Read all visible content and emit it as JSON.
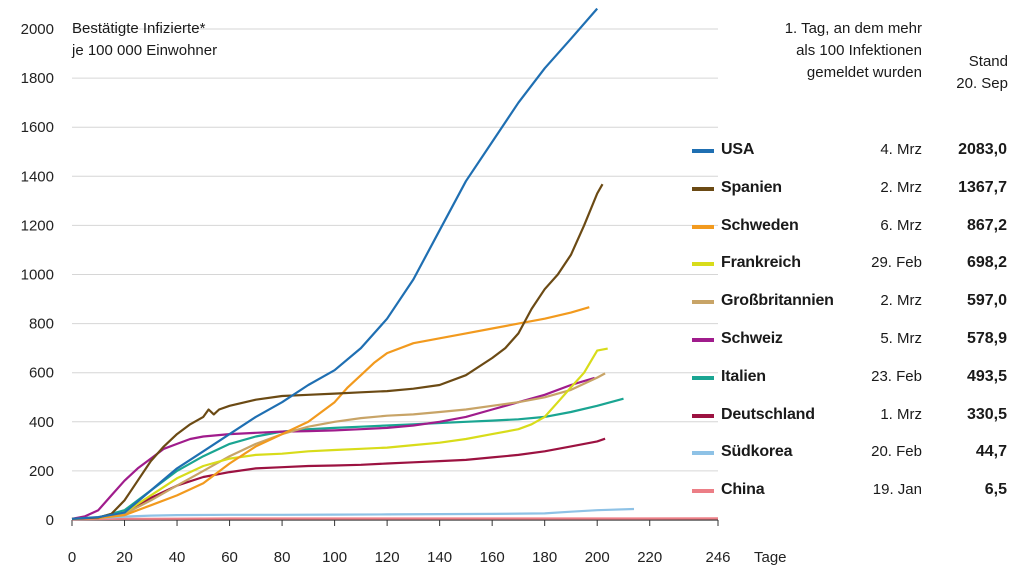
{
  "chart_data": {
    "type": "line",
    "title_lines": [
      "Bestätigte Infizierte*",
      "je 100 000 Einwohner"
    ],
    "xlabel": "Tage",
    "ylabel": "",
    "xlim": [
      0,
      246
    ],
    "ylim": [
      0,
      2000
    ],
    "xticks": [
      "0",
      "20",
      "40",
      "60",
      "80",
      "100",
      "120",
      "140",
      "160",
      "180",
      "200",
      "220",
      "246"
    ],
    "yticks": [
      "0",
      "200",
      "400",
      "600",
      "800",
      "1000",
      "1200",
      "1400",
      "1600",
      "1800",
      "2000"
    ],
    "legend_header_lines": [
      "1. Tag, an dem mehr",
      "als 100 Infektionen",
      "gemeldet wurden"
    ],
    "value_header_lines": [
      "Stand",
      "20. Sep"
    ],
    "series": [
      {
        "name": "USA",
        "color": "#1f6fb2",
        "first_day": "4. Mrz",
        "value_label": "2083,0",
        "x": [
          0,
          10,
          20,
          30,
          40,
          50,
          60,
          70,
          80,
          90,
          100,
          110,
          120,
          130,
          140,
          150,
          160,
          170,
          180,
          190,
          200
        ],
        "y": [
          5,
          12,
          30,
          120,
          210,
          280,
          350,
          420,
          480,
          550,
          610,
          700,
          820,
          980,
          1180,
          1380,
          1540,
          1700,
          1840,
          1960,
          2083
        ]
      },
      {
        "name": "Spanien",
        "color": "#6b4a14",
        "first_day": "2. Mrz",
        "value_label": "1367,7",
        "x": [
          0,
          10,
          15,
          20,
          25,
          30,
          35,
          40,
          45,
          50,
          52,
          54,
          56,
          60,
          70,
          80,
          90,
          100,
          110,
          120,
          130,
          140,
          150,
          160,
          165,
          170,
          175,
          180,
          185,
          190,
          195,
          200,
          202
        ],
        "y": [
          5,
          10,
          25,
          80,
          160,
          240,
          300,
          350,
          390,
          420,
          450,
          430,
          450,
          465,
          490,
          505,
          510,
          515,
          520,
          525,
          535,
          550,
          590,
          660,
          700,
          760,
          860,
          940,
          1000,
          1080,
          1200,
          1330,
          1368
        ]
      },
      {
        "name": "Schweden",
        "color": "#f29a1e",
        "first_day": "6. Mrz",
        "value_label": "867,2",
        "x": [
          0,
          10,
          20,
          30,
          40,
          50,
          60,
          70,
          80,
          90,
          100,
          105,
          110,
          115,
          120,
          130,
          140,
          150,
          160,
          170,
          180,
          190,
          197
        ],
        "y": [
          5,
          8,
          20,
          60,
          100,
          150,
          230,
          300,
          350,
          400,
          480,
          540,
          590,
          640,
          680,
          720,
          740,
          760,
          780,
          800,
          820,
          845,
          867
        ]
      },
      {
        "name": "Frankreich",
        "color": "#d8dc1a",
        "first_day": "29. Feb",
        "value_label": "698,2",
        "x": [
          0,
          10,
          20,
          30,
          40,
          50,
          60,
          70,
          80,
          90,
          100,
          110,
          120,
          130,
          140,
          150,
          160,
          170,
          175,
          180,
          185,
          190,
          195,
          200,
          204
        ],
        "y": [
          5,
          10,
          30,
          100,
          170,
          220,
          250,
          265,
          270,
          280,
          285,
          290,
          295,
          305,
          315,
          330,
          350,
          370,
          390,
          420,
          480,
          540,
          600,
          690,
          698
        ]
      },
      {
        "name": "Großbritannien",
        "color": "#c8a467",
        "first_day": "2. Mrz",
        "value_label": "597,0",
        "x": [
          0,
          10,
          20,
          30,
          40,
          50,
          60,
          70,
          80,
          90,
          100,
          110,
          120,
          130,
          140,
          150,
          160,
          170,
          180,
          190,
          200,
          203
        ],
        "y": [
          5,
          8,
          25,
          80,
          140,
          200,
          260,
          310,
          350,
          380,
          400,
          415,
          425,
          430,
          440,
          450,
          465,
          480,
          500,
          530,
          580,
          597
        ]
      },
      {
        "name": "Schweiz",
        "color": "#a01c8c",
        "first_day": "5. Mrz",
        "value_label": "578,9",
        "x": [
          0,
          5,
          10,
          15,
          20,
          25,
          30,
          35,
          40,
          45,
          50,
          60,
          70,
          80,
          90,
          100,
          110,
          120,
          130,
          140,
          150,
          160,
          170,
          180,
          190,
          199
        ],
        "y": [
          5,
          15,
          40,
          100,
          160,
          210,
          250,
          290,
          310,
          330,
          340,
          350,
          355,
          360,
          362,
          365,
          370,
          375,
          385,
          400,
          420,
          450,
          480,
          510,
          550,
          579
        ]
      },
      {
        "name": "Italien",
        "color": "#1aa592",
        "first_day": "23. Feb",
        "value_label": "493,5",
        "x": [
          0,
          10,
          20,
          30,
          40,
          50,
          60,
          70,
          80,
          90,
          100,
          110,
          120,
          130,
          140,
          150,
          160,
          170,
          180,
          190,
          200,
          210
        ],
        "y": [
          5,
          10,
          40,
          120,
          200,
          260,
          310,
          340,
          360,
          370,
          375,
          380,
          385,
          390,
          395,
          400,
          405,
          410,
          420,
          440,
          465,
          494
        ]
      },
      {
        "name": "Deutschland",
        "color": "#9c1241",
        "first_day": "1. Mrz",
        "value_label": "330,5",
        "x": [
          0,
          10,
          20,
          30,
          40,
          50,
          60,
          70,
          80,
          90,
          100,
          110,
          120,
          130,
          140,
          150,
          160,
          170,
          180,
          190,
          200,
          203
        ],
        "y": [
          5,
          8,
          30,
          90,
          140,
          175,
          195,
          210,
          215,
          220,
          222,
          225,
          230,
          235,
          240,
          245,
          255,
          265,
          280,
          300,
          320,
          331
        ]
      },
      {
        "name": "Südkorea",
        "color": "#8ec2e6",
        "first_day": "20. Feb",
        "value_label": "44,7",
        "x": [
          0,
          10,
          20,
          30,
          40,
          60,
          80,
          100,
          120,
          140,
          160,
          180,
          190,
          200,
          214
        ],
        "y": [
          5,
          8,
          14,
          18,
          20,
          21,
          21,
          22,
          23,
          24,
          25,
          27,
          34,
          40,
          45
        ]
      },
      {
        "name": "China",
        "color": "#ec7e86",
        "first_day": "19. Jan",
        "value_label": "6,5",
        "x": [
          0,
          10,
          20,
          30,
          60,
          100,
          150,
          200,
          246
        ],
        "y": [
          3,
          4,
          5,
          5,
          6,
          6,
          6,
          6,
          6.5
        ]
      }
    ]
  }
}
